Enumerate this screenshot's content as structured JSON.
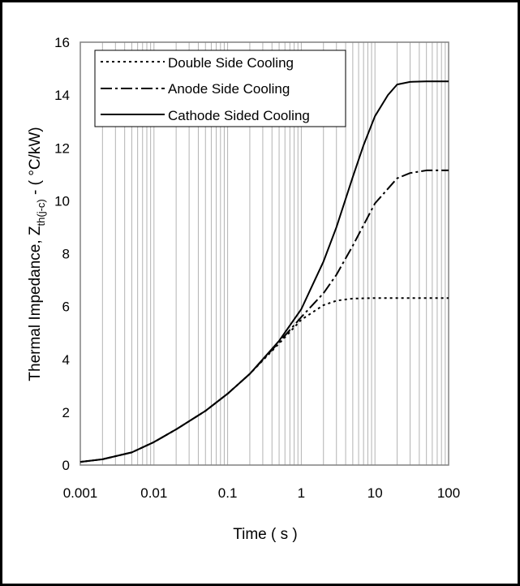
{
  "chart_data": {
    "type": "line",
    "xscale": "log",
    "xlim": [
      0.001,
      100
    ],
    "ylim": [
      0,
      16
    ],
    "xticks": [
      "0.001",
      "0.01",
      "0.1",
      "1",
      "10",
      "100"
    ],
    "yticks": [
      "0",
      "2",
      "4",
      "6",
      "8",
      "10",
      "12",
      "14",
      "16"
    ],
    "xlabel": "Time ( s )",
    "ylabel": {
      "main": "Thermal Impedance, Z",
      "subscript": "th(j-c)",
      "suffix": " - ( °C/kW)"
    },
    "grid": "vertical minor and major lines",
    "legend_position": "top-left inside plot",
    "series": [
      {
        "name": "Double Side Cooling",
        "style": "dotted",
        "x": [
          0.001,
          0.002,
          0.005,
          0.01,
          0.02,
          0.05,
          0.1,
          0.2,
          0.5,
          1,
          2,
          3,
          5,
          10,
          20,
          50,
          100
        ],
        "y": [
          0.12,
          0.22,
          0.48,
          0.87,
          1.35,
          2.05,
          2.7,
          3.45,
          4.6,
          5.5,
          6.05,
          6.22,
          6.3,
          6.32,
          6.32,
          6.32,
          6.32
        ]
      },
      {
        "name": "Anode Side Cooling",
        "style": "dash-dot",
        "x": [
          0.001,
          0.002,
          0.005,
          0.01,
          0.02,
          0.05,
          0.1,
          0.2,
          0.5,
          1,
          2,
          3,
          5,
          10,
          20,
          30,
          50,
          100
        ],
        "y": [
          0.12,
          0.22,
          0.48,
          0.87,
          1.35,
          2.05,
          2.7,
          3.45,
          4.65,
          5.6,
          6.5,
          7.2,
          8.3,
          9.9,
          10.85,
          11.05,
          11.15,
          11.15
        ]
      },
      {
        "name": "Cathode Sided Cooling",
        "style": "solid",
        "x": [
          0.001,
          0.002,
          0.005,
          0.01,
          0.02,
          0.05,
          0.1,
          0.2,
          0.5,
          1,
          2,
          3,
          5,
          7,
          10,
          15,
          20,
          30,
          50,
          100
        ],
        "y": [
          0.12,
          0.22,
          0.48,
          0.87,
          1.35,
          2.05,
          2.7,
          3.45,
          4.7,
          5.9,
          7.7,
          9.0,
          10.9,
          12.1,
          13.2,
          14.0,
          14.4,
          14.5,
          14.52,
          14.52
        ]
      }
    ]
  }
}
